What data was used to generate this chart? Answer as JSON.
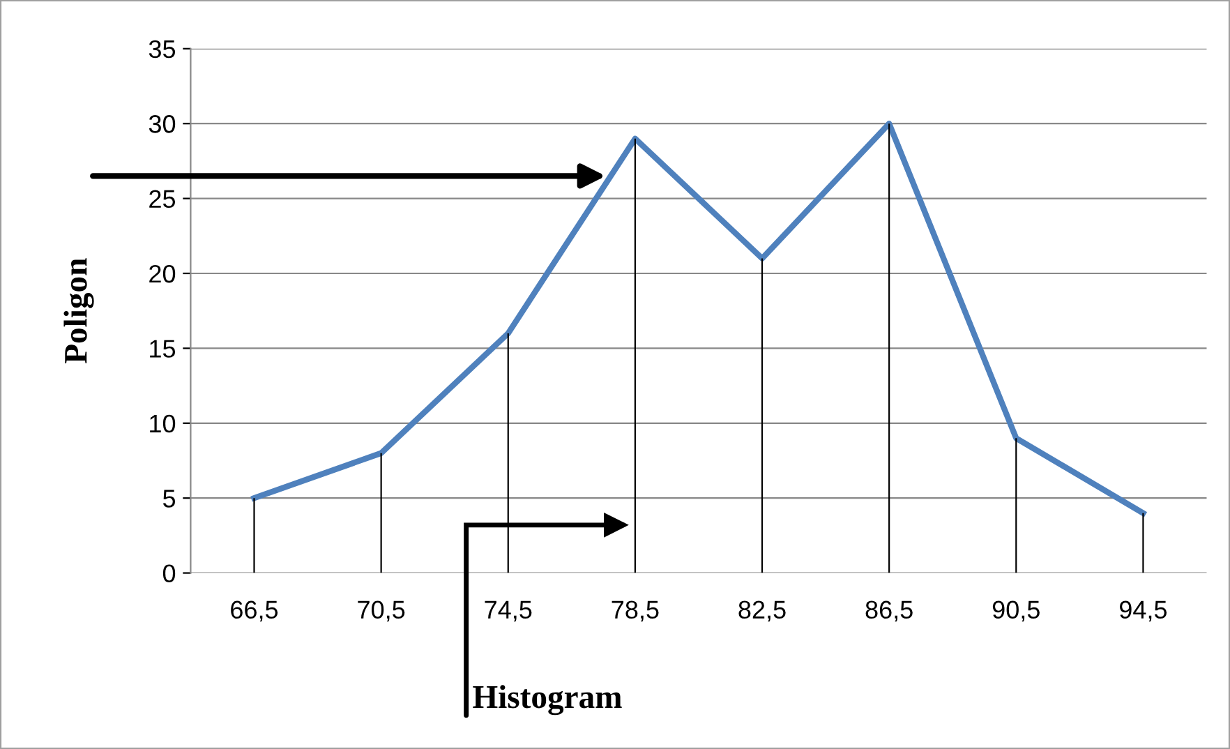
{
  "chart_data": {
    "type": "line",
    "ylabel": "Poligon",
    "categories": [
      "66,5",
      "70,5",
      "74,5",
      "78,5",
      "82,5",
      "86,5",
      "90,5",
      "94,5"
    ],
    "series": [
      {
        "color": "#4f81bd",
        "values": [
          5,
          8,
          16,
          29,
          21,
          30,
          9,
          4
        ]
      },
      {
        "type": "bar",
        "color": "#000000",
        "values": [
          5,
          8,
          16,
          29,
          21,
          30,
          9,
          4
        ]
      }
    ],
    "ylim": [
      0,
      35
    ],
    "yticks": [
      0,
      5,
      10,
      15,
      20,
      25,
      30,
      35
    ],
    "grid": "y",
    "marker": "none",
    "line_style": "solid",
    "annotations": [
      "Histogram"
    ]
  }
}
